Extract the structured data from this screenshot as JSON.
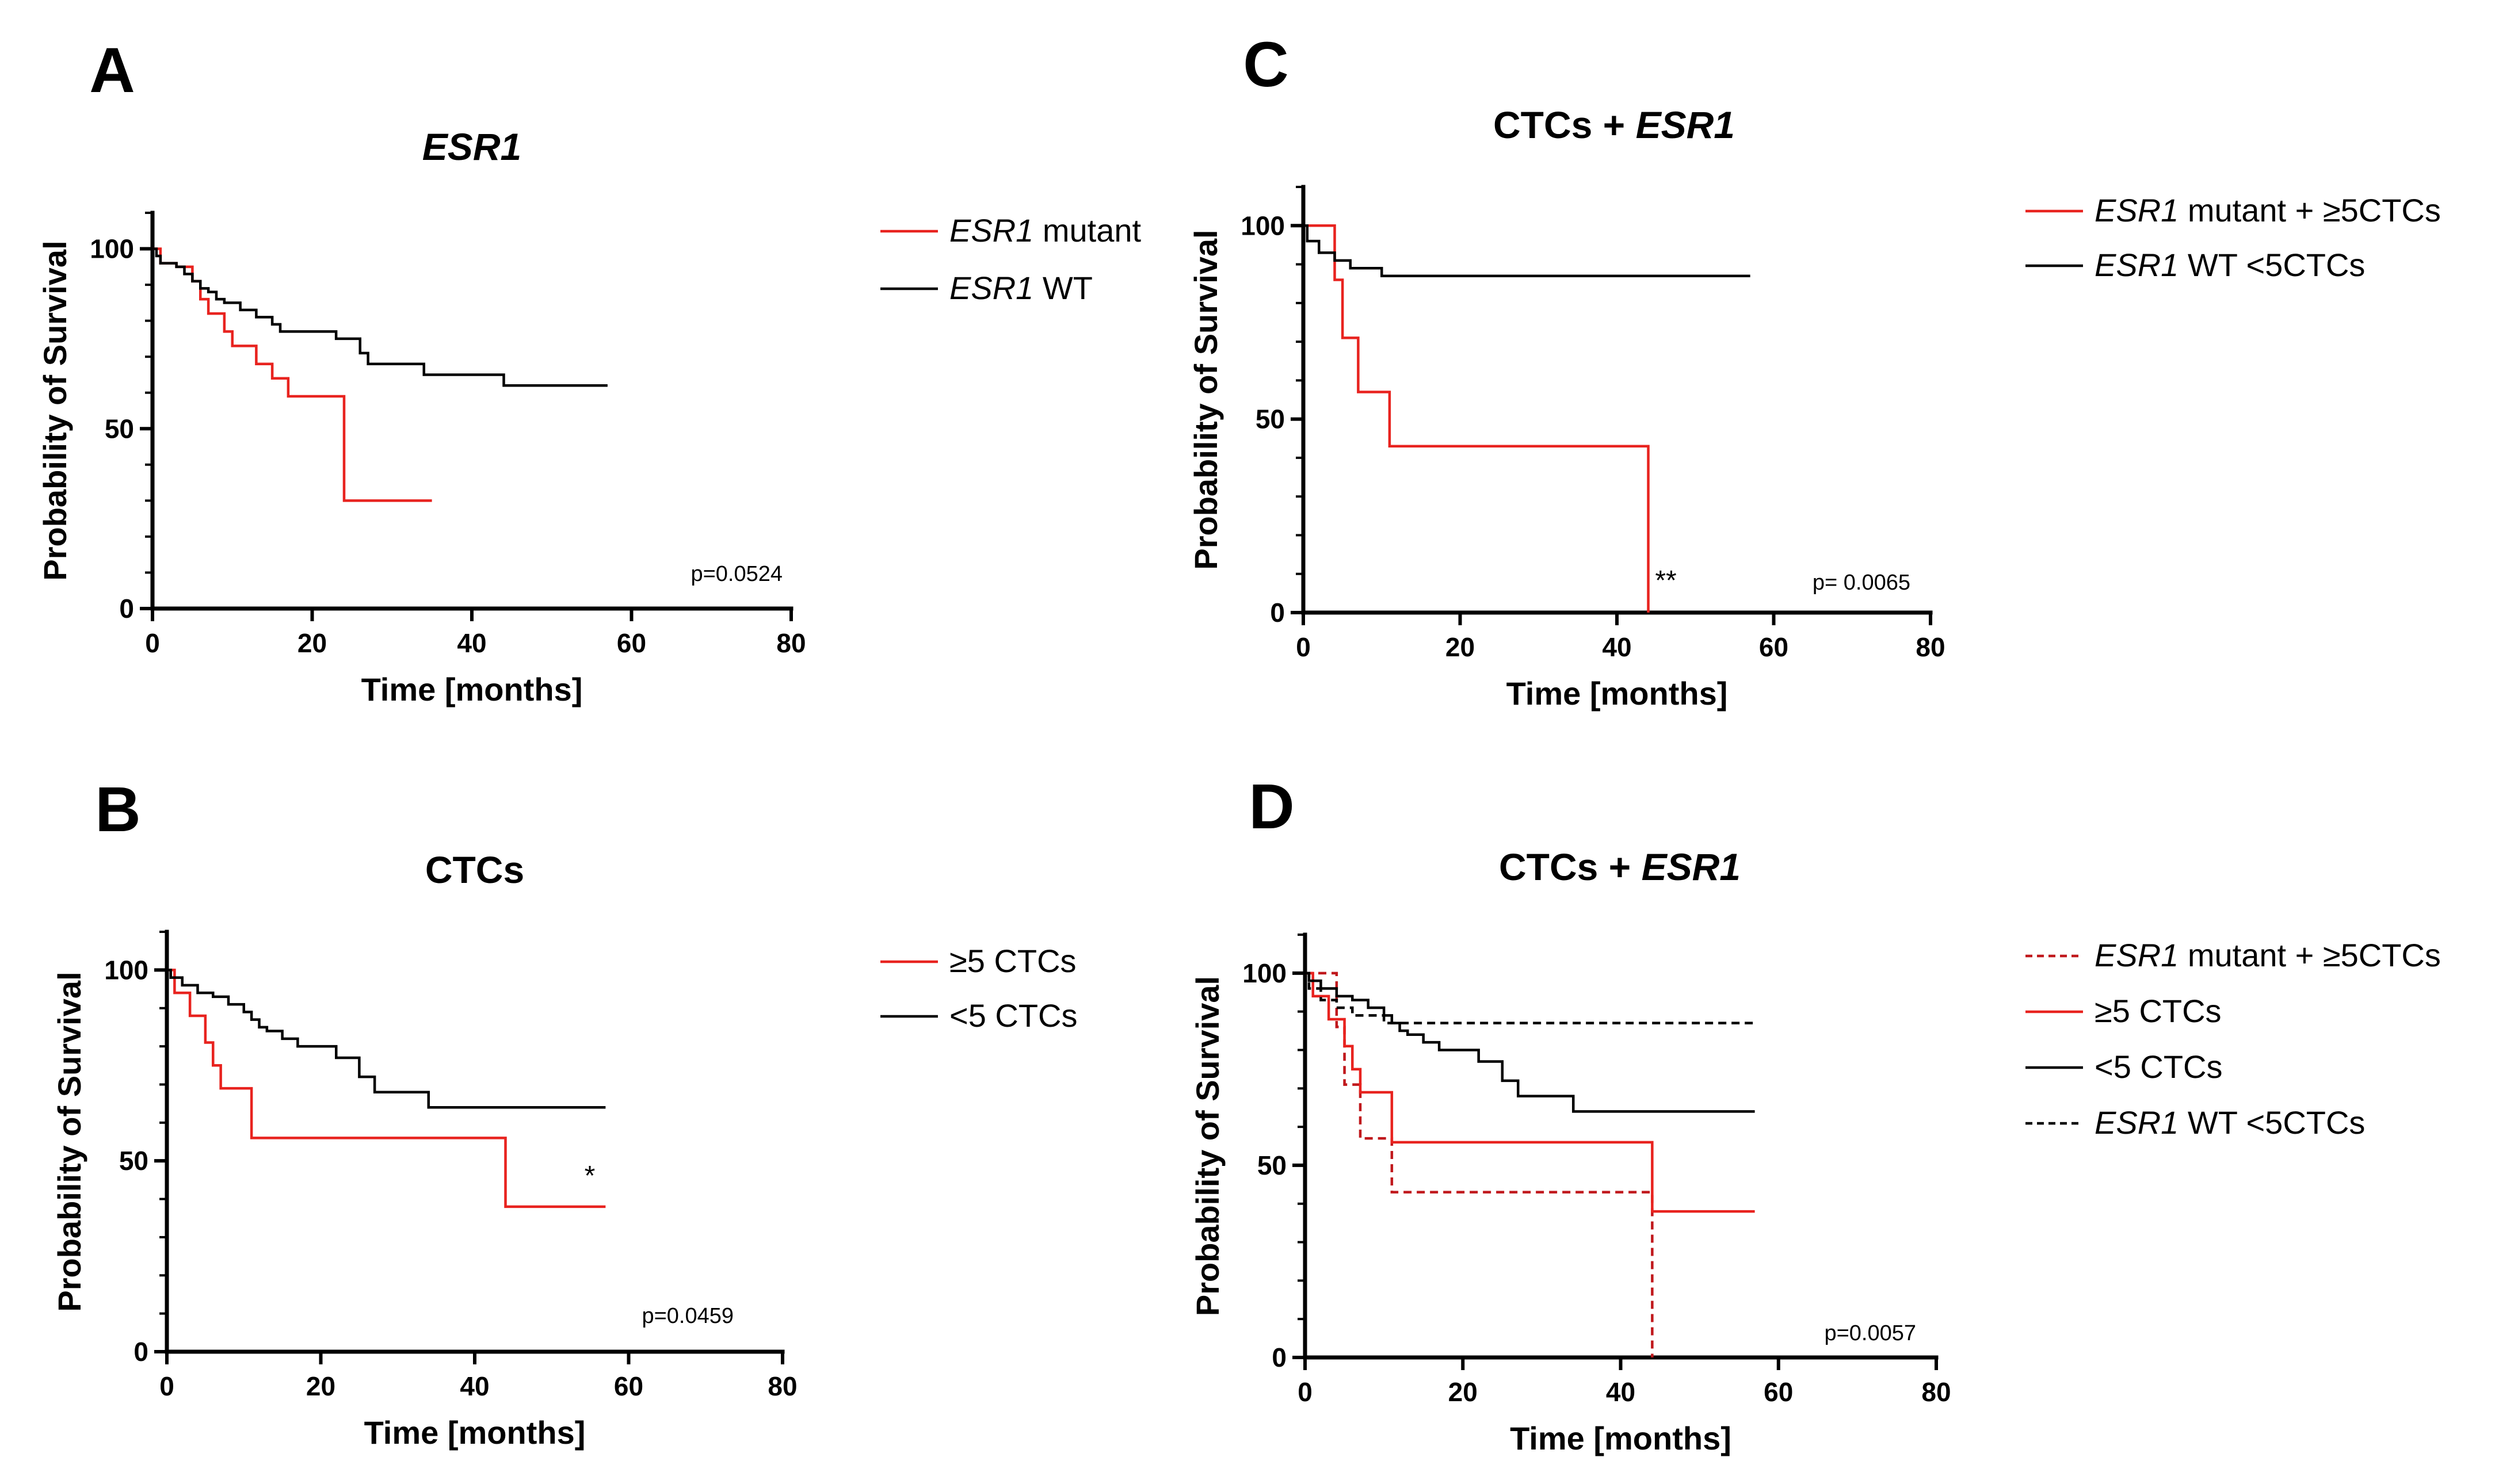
{
  "chart_data": [
    {
      "panel": "A",
      "type": "line",
      "title": "ESR1",
      "title_italic_part": "ESR1",
      "title_plain_part": "",
      "xlabel": "Time [months]",
      "ylabel": "Probability of Survival",
      "xlim": [
        0,
        80
      ],
      "ylim": [
        0,
        110
      ],
      "xticks": [
        0,
        20,
        40,
        60,
        80
      ],
      "yticks": [
        0,
        50,
        100
      ],
      "grid": false,
      "legend_position": "right",
      "p_value": "p=0.0524",
      "annotation": "",
      "series": [
        {
          "name": "mutant",
          "name_italic_part": "ESR1",
          "name_plain_part": " mutant",
          "color": "#e8231f",
          "dashed": false,
          "steps": [
            [
              0,
              100
            ],
            [
              1,
              96
            ],
            [
              3,
              95
            ],
            [
              5,
              91
            ],
            [
              6,
              86
            ],
            [
              7,
              82
            ],
            [
              9,
              77
            ],
            [
              10,
              73
            ],
            [
              13,
              68
            ],
            [
              15,
              64
            ],
            [
              17,
              59
            ],
            [
              24,
              30
            ],
            [
              35,
              30
            ]
          ]
        },
        {
          "name": "WT",
          "name_italic_part": "ESR1",
          "name_plain_part": " WT",
          "color": "#000000",
          "dashed": false,
          "steps": [
            [
              0,
              100
            ],
            [
              0.5,
              98
            ],
            [
              1,
              96
            ],
            [
              3,
              95
            ],
            [
              4,
              93
            ],
            [
              5,
              91
            ],
            [
              6,
              89
            ],
            [
              7,
              88
            ],
            [
              8,
              86
            ],
            [
              9,
              85
            ],
            [
              11,
              83
            ],
            [
              13,
              81
            ],
            [
              15,
              79
            ],
            [
              16,
              77
            ],
            [
              23,
              75
            ],
            [
              26,
              71
            ],
            [
              27,
              68
            ],
            [
              34,
              65
            ],
            [
              44,
              62
            ],
            [
              57,
              62
            ]
          ]
        }
      ]
    },
    {
      "panel": "B",
      "type": "line",
      "title": "CTCs",
      "title_italic_part": "",
      "title_plain_part": "CTCs",
      "xlabel": "Time [months]",
      "ylabel": "Probability of Survival",
      "xlim": [
        0,
        80
      ],
      "ylim": [
        0,
        110
      ],
      "xticks": [
        0,
        20,
        40,
        60,
        80
      ],
      "yticks": [
        0,
        50,
        100
      ],
      "grid": false,
      "legend_position": "right",
      "p_value": "p=0.0459",
      "annotation": "*",
      "series": [
        {
          "name": "≥5 CTCs",
          "name_italic_part": "",
          "name_plain_part": "≥5 CTCs",
          "color": "#e8231f",
          "dashed": false,
          "steps": [
            [
              0,
              100
            ],
            [
              1,
              94
            ],
            [
              3,
              88
            ],
            [
              5,
              81
            ],
            [
              6,
              75
            ],
            [
              7,
              69
            ],
            [
              11,
              56
            ],
            [
              44,
              38
            ],
            [
              57,
              38
            ]
          ]
        },
        {
          "name": "<5 CTCs",
          "name_italic_part": "",
          "name_plain_part": "<5 CTCs",
          "color": "#000000",
          "dashed": false,
          "steps": [
            [
              0,
              100
            ],
            [
              0.5,
              98
            ],
            [
              2,
              96
            ],
            [
              4,
              94
            ],
            [
              6,
              93
            ],
            [
              8,
              91
            ],
            [
              10,
              89
            ],
            [
              11,
              87
            ],
            [
              12,
              85
            ],
            [
              13,
              84
            ],
            [
              15,
              82
            ],
            [
              17,
              80
            ],
            [
              22,
              77
            ],
            [
              25,
              72
            ],
            [
              27,
              68
            ],
            [
              34,
              64
            ],
            [
              57,
              64
            ]
          ]
        }
      ]
    },
    {
      "panel": "C",
      "type": "line",
      "title": "CTCs + ESR1",
      "title_italic_part": "ESR1",
      "title_plain_part": "CTCs + ",
      "xlabel": "Time [months]",
      "ylabel": "Probability of Survival",
      "xlim": [
        0,
        80
      ],
      "ylim": [
        0,
        110
      ],
      "xticks": [
        0,
        20,
        40,
        60,
        80
      ],
      "yticks": [
        0,
        50,
        100
      ],
      "grid": false,
      "legend_position": "right",
      "p_value": "p= 0.0065",
      "annotation": "**",
      "series": [
        {
          "name": "mutant + ≥5CTCs",
          "name_italic_part": "ESR1",
          "name_plain_part": " mutant +  ≥5CTCs",
          "color": "#e8231f",
          "dashed": false,
          "steps": [
            [
              0,
              100
            ],
            [
              4,
              86
            ],
            [
              5,
              71
            ],
            [
              7,
              57
            ],
            [
              11,
              43
            ],
            [
              44,
              0
            ]
          ]
        },
        {
          "name": "WT <5CTCs",
          "name_italic_part": "ESR1",
          "name_plain_part": " WT <5CTCs",
          "color": "#000000",
          "dashed": false,
          "steps": [
            [
              0,
              100
            ],
            [
              0.5,
              96
            ],
            [
              2,
              93
            ],
            [
              4,
              91
            ],
            [
              6,
              89
            ],
            [
              10,
              87
            ],
            [
              57,
              87
            ]
          ]
        }
      ]
    },
    {
      "panel": "D",
      "type": "line",
      "title": "CTCs + ESR1",
      "title_italic_part": "ESR1",
      "title_plain_part": "CTCs + ",
      "xlabel": "Time [months]",
      "ylabel": "Probability of Survival",
      "xlim": [
        0,
        80
      ],
      "ylim": [
        0,
        110
      ],
      "xticks": [
        0,
        20,
        40,
        60,
        80
      ],
      "yticks": [
        0,
        50,
        100
      ],
      "grid": false,
      "legend_position": "right",
      "p_value": "p=0.0057",
      "annotation": "",
      "series": [
        {
          "name": "mutant + ≥5CTCs",
          "name_italic_part": "ESR1",
          "name_plain_part": " mutant +  ≥5CTCs",
          "color": "#c0181c",
          "dashed": true,
          "steps": [
            [
              0,
              100
            ],
            [
              4,
              86
            ],
            [
              5,
              71
            ],
            [
              7,
              57
            ],
            [
              11,
              43
            ],
            [
              44,
              0
            ]
          ]
        },
        {
          "name": "≥5 CTCs",
          "name_italic_part": "",
          "name_plain_part": " ≥5 CTCs",
          "color": "#e8231f",
          "dashed": false,
          "steps": [
            [
              0,
              100
            ],
            [
              1,
              94
            ],
            [
              3,
              88
            ],
            [
              5,
              81
            ],
            [
              6,
              75
            ],
            [
              7,
              69
            ],
            [
              11,
              56
            ],
            [
              44,
              38
            ],
            [
              57,
              38
            ]
          ]
        },
        {
          "name": "<5 CTCs",
          "name_italic_part": "",
          "name_plain_part": "<5 CTCs",
          "color": "#000000",
          "dashed": false,
          "steps": [
            [
              0,
              100
            ],
            [
              0.5,
              98
            ],
            [
              2,
              96
            ],
            [
              4,
              94
            ],
            [
              6,
              93
            ],
            [
              8,
              91
            ],
            [
              10,
              89
            ],
            [
              11,
              87
            ],
            [
              12,
              85
            ],
            [
              13,
              84
            ],
            [
              15,
              82
            ],
            [
              17,
              80
            ],
            [
              22,
              77
            ],
            [
              25,
              72
            ],
            [
              27,
              68
            ],
            [
              34,
              64
            ],
            [
              57,
              64
            ]
          ]
        },
        {
          "name": "WT <5CTCs",
          "name_italic_part": "ESR1",
          "name_plain_part": " WT <5CTCs",
          "color": "#000000",
          "dashed": true,
          "steps": [
            [
              0,
              100
            ],
            [
              0.5,
              96
            ],
            [
              2,
              93
            ],
            [
              4,
              91
            ],
            [
              6,
              89
            ],
            [
              10,
              87
            ],
            [
              57,
              87
            ]
          ]
        }
      ]
    }
  ]
}
